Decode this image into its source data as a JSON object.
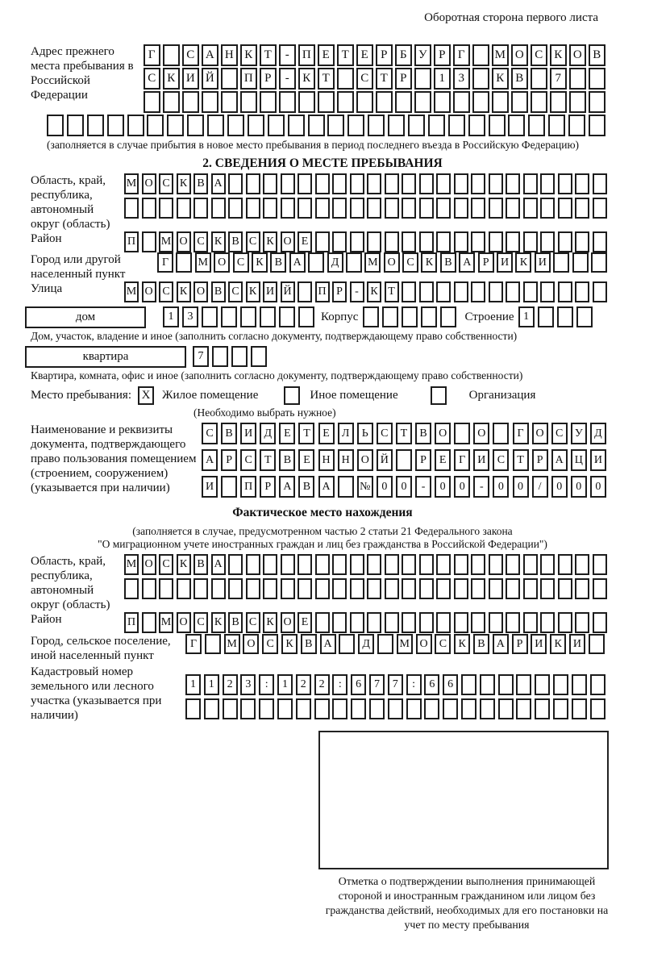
{
  "page": {
    "header_note": "Оборотная сторона первого листа"
  },
  "prev_address": {
    "label": "Адрес прежнего места пребывания в Российской Федерации",
    "rows": [
      {
        "text": "Г САНКТ-ПЕТЕРБУРГ МОСКОВ",
        "len": 24
      },
      {
        "text": "СКИЙ ПР-КТ СТР 13 КВ 7",
        "len": 24
      },
      {
        "text": "",
        "len": 24
      },
      {
        "text": "",
        "len": 28
      }
    ],
    "caption": "(заполняется в случае прибытия в новое место пребывания в период последнего въезда в Российскую Федерацию)"
  },
  "section2": {
    "title": "2. СВЕДЕНИЯ О МЕСТЕ ПРЕБЫВАНИЯ",
    "region": {
      "label": "Область, край, республика, автономный округ (область)",
      "rows": [
        {
          "text": "МОСКВА",
          "len": 28
        },
        {
          "text": "",
          "len": 28
        }
      ]
    },
    "district": {
      "label": "Район",
      "row": {
        "text": "П МОСКВСКОЕ",
        "len": 28
      }
    },
    "city": {
      "label": "Город или другой населенный пункт",
      "row": {
        "text": "Г МОСКВА Д МОСКВАРИКИ",
        "len": 24
      }
    },
    "street": {
      "label": "Улица",
      "row": {
        "text": "МОСКОВСКИЙ ПР-КТ",
        "len": 28
      }
    },
    "house": {
      "box_label": "дом",
      "row": {
        "text": "13",
        "len": 8
      },
      "korpus_label": "Корпус",
      "korpus_row": {
        "text": "",
        "len": 5
      },
      "stroenie_label": "Строение",
      "stroenie_row": {
        "text": "1",
        "len": 4
      },
      "caption": "Дом, участок, владение и иное (заполнить согласно документу, подтверждающему право собственности)"
    },
    "apartment": {
      "box_label": "квартира",
      "row": {
        "text": "7",
        "len": 4
      },
      "caption": "Квартира, комната, офис и иное (заполнить согласно документу, подтверждающему право собственности)"
    },
    "stay_type": {
      "label": "Место пребывания:",
      "options": [
        {
          "label": "Жилое помещение",
          "checked": "X"
        },
        {
          "label": "Иное помещение",
          "checked": ""
        },
        {
          "label": "Организация",
          "checked": ""
        }
      ],
      "caption": "(Необходимо выбрать нужное)"
    },
    "document": {
      "label": "Наименование и реквизиты документа, подтверждающего право пользования помещением (строением, сооружением) (указывается при наличии)",
      "rows": [
        {
          "text": "СВИДЕТЕЛЬСТВО О ГОСУД",
          "len": 21
        },
        {
          "text": "АРСТВЕННОЙ РЕГИСТРАЦИ",
          "len": 21
        },
        {
          "text": "И ПРАВА №00-00-00/000",
          "len": 21
        }
      ]
    }
  },
  "actual_location": {
    "title": "Фактическое место нахождения",
    "caption_line1": "(заполняется в случае, предусмотренном частью 2 статьи 21 Федерального закона",
    "caption_line2": "\"О миграционном учете иностранных граждан и лиц без гражданства в Российской Федерации\")",
    "region": {
      "label": "Область, край, республика, автономный округ (область)",
      "rows": [
        {
          "text": "МОСКВА",
          "len": 28
        },
        {
          "text": "",
          "len": 28
        }
      ]
    },
    "district": {
      "label": "Район",
      "row": {
        "text": "П МОСКВСКОЕ",
        "len": 28
      }
    },
    "city": {
      "label": "Город, сельское поселение, иной населенный пункт",
      "row": {
        "text": "Г МОСКВА Д МОСКВАРИКИ",
        "len": 22
      }
    },
    "cadastral": {
      "label": "Кадастровый номер земельного или лесного участка (указывается при наличии)",
      "rows": [
        {
          "text": "1123:122:677:66",
          "len": 23
        },
        {
          "text": "",
          "len": 23
        }
      ]
    }
  },
  "stamp": {
    "caption": "Отметка о подтверждении выполнения принимающей стороной и иностранным гражданином или лицом без гражданства действий, необходимых для его постановки на учет по месту пребывания"
  }
}
